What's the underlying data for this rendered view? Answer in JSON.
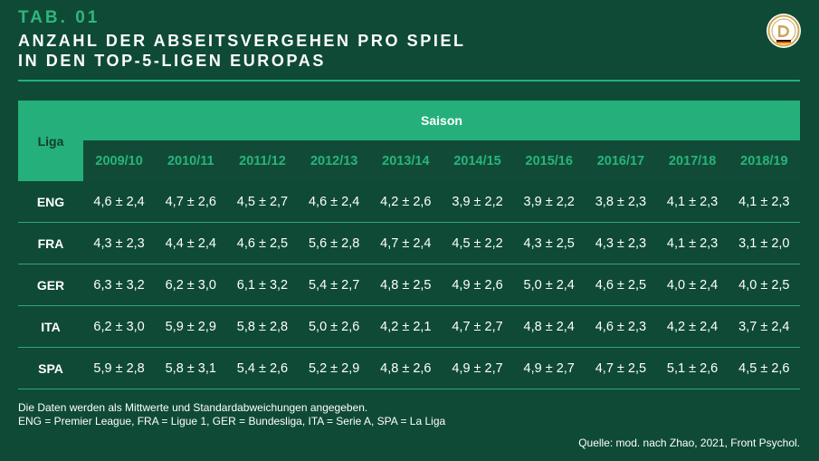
{
  "header": {
    "tab_label": "TAB. 01",
    "title_line1": "ANZAHL DER ABSEITSVERGEHEN PRO SPIEL",
    "title_line2": "IN DEN TOP-5-LIGEN EUROPAS"
  },
  "logo": {
    "icon": "dfb-emblem-icon"
  },
  "table": {
    "liga_header": "Liga",
    "saison_header": "Saison",
    "seasons": [
      "2009/10",
      "2010/11",
      "2011/12",
      "2012/13",
      "2013/14",
      "2014/15",
      "2015/16",
      "2016/17",
      "2017/18",
      "2018/19"
    ],
    "rows": [
      {
        "liga": "ENG",
        "values": [
          "4,6 ± 2,4",
          "4,7 ± 2,6",
          "4,5 ± 2,7",
          "4,6 ± 2,4",
          "4,2 ± 2,6",
          "3,9 ± 2,2",
          "3,9 ± 2,2",
          "3,8 ± 2,3",
          "4,1 ± 2,3",
          "4,1 ± 2,3"
        ]
      },
      {
        "liga": "FRA",
        "values": [
          "4,3 ± 2,3",
          "4,4 ± 2,4",
          "4,6 ± 2,5",
          "5,6 ± 2,8",
          "4,7 ± 2,4",
          "4,5 ± 2,2",
          "4,3 ± 2,5",
          "4,3 ± 2,3",
          "4,1 ± 2,3",
          "3,1 ± 2,0"
        ]
      },
      {
        "liga": "GER",
        "values": [
          "6,3 ± 3,2",
          "6,2 ± 3,0",
          "6,1 ± 3,2",
          "5,4 ± 2,7",
          "4,8 ± 2,5",
          "4,9 ± 2,6",
          "5,0 ± 2,4",
          "4,6 ± 2,5",
          "4,0 ± 2,4",
          "4,0 ± 2,5"
        ]
      },
      {
        "liga": "ITA",
        "values": [
          "6,2 ± 3,0",
          "5,9 ± 2,9",
          "5,8 ± 2,8",
          "5,0 ± 2,6",
          "4,2 ± 2,1",
          "4,7 ± 2,7",
          "4,8 ± 2,4",
          "4,6 ± 2,3",
          "4,2 ± 2,4",
          "3,7 ± 2,4"
        ]
      },
      {
        "liga": "SPA",
        "values": [
          "5,9 ± 2,8",
          "5,8 ± 3,1",
          "5,4 ± 2,6",
          "5,2 ± 2,9",
          "4,8 ± 2,6",
          "4,9 ± 2,7",
          "4,9 ± 2,7",
          "4,7 ± 2,5",
          "5,1 ± 2,6",
          "4,5 ± 2,6"
        ]
      }
    ]
  },
  "notes": {
    "line1": "Die Daten werden als Mittwerte und Standardabweichungen angegeben.",
    "line2": "ENG = Premier League, FRA = Ligue 1, GER = Bundesliga, ITA = Serie A, SPA = La Liga"
  },
  "source": "Quelle: mod. nach Zhao, 2021, Front Psychol.",
  "colors": {
    "background": "#0f4a37",
    "accent": "#25b07b",
    "year_text": "#27b57c"
  }
}
